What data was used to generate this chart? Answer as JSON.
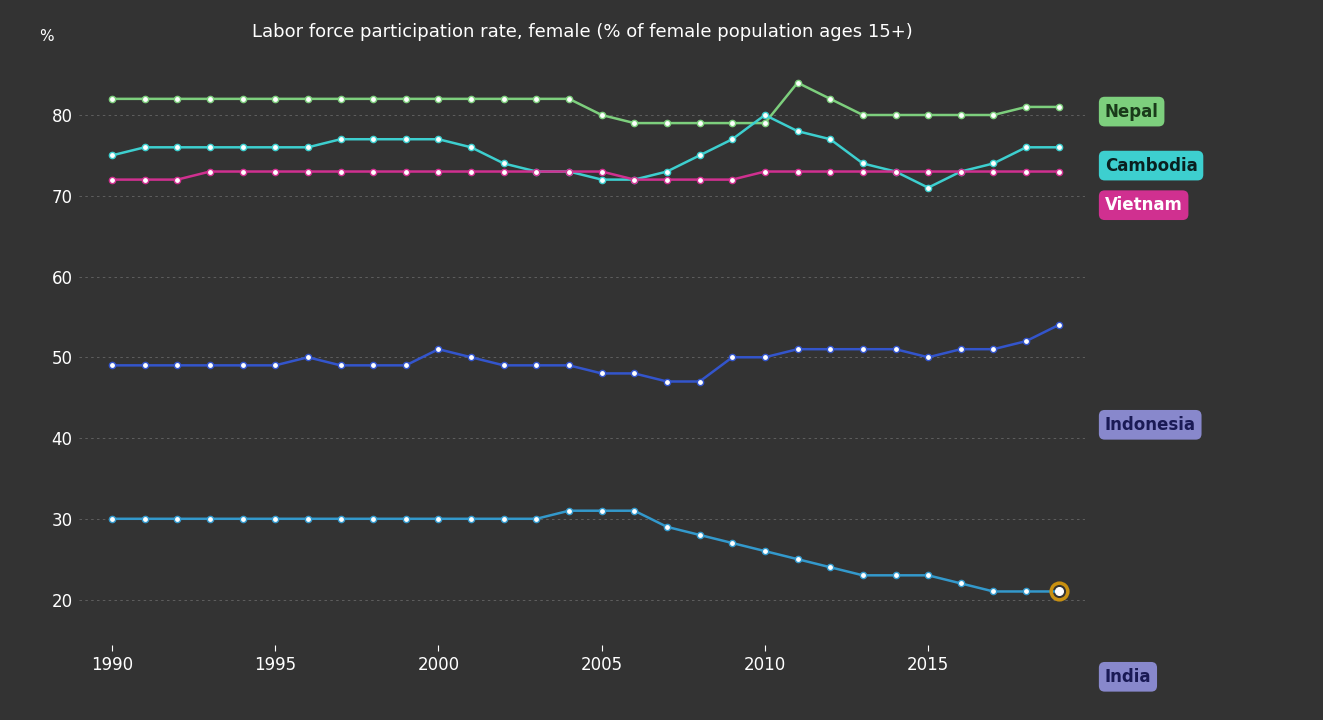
{
  "title": "Labor force participation rate, female (% of female population ages 15+)",
  "ylabel": "%",
  "background_color": "#333333",
  "text_color": "#ffffff",
  "grid_color": "#666666",
  "ylim": [
    14,
    88
  ],
  "yticks": [
    20,
    30,
    40,
    50,
    60,
    70,
    80
  ],
  "years": [
    1990,
    1991,
    1992,
    1993,
    1994,
    1995,
    1996,
    1997,
    1998,
    1999,
    2000,
    2001,
    2002,
    2003,
    2004,
    2005,
    2006,
    2007,
    2008,
    2009,
    2010,
    2011,
    2012,
    2013,
    2014,
    2015,
    2016,
    2017,
    2018,
    2019
  ],
  "series": {
    "Nepal": {
      "color": "#7dcf7d",
      "data": [
        82,
        82,
        82,
        82,
        82,
        82,
        82,
        82,
        82,
        82,
        82,
        82,
        82,
        82,
        82,
        80,
        79,
        79,
        79,
        79,
        79,
        84,
        82,
        80,
        80,
        80,
        80,
        80,
        81,
        81
      ]
    },
    "Cambodia": {
      "color": "#3dcfcf",
      "data": [
        75,
        76,
        76,
        76,
        76,
        76,
        76,
        77,
        77,
        77,
        77,
        76,
        74,
        73,
        73,
        72,
        72,
        73,
        75,
        77,
        80,
        78,
        77,
        74,
        73,
        71,
        73,
        74,
        76,
        76
      ]
    },
    "Vietnam": {
      "color": "#d03090",
      "data": [
        72,
        72,
        72,
        73,
        73,
        73,
        73,
        73,
        73,
        73,
        73,
        73,
        73,
        73,
        73,
        73,
        72,
        72,
        72,
        72,
        73,
        73,
        73,
        73,
        73,
        73,
        73,
        73,
        73,
        73
      ]
    },
    "Indonesia": {
      "color": "#3355cc",
      "data": [
        49,
        49,
        49,
        49,
        49,
        49,
        50,
        49,
        49,
        49,
        51,
        50,
        49,
        49,
        49,
        48,
        48,
        47,
        47,
        50,
        50,
        51,
        51,
        51,
        51,
        50,
        51,
        51,
        52,
        54
      ]
    },
    "India": {
      "color": "#3399cc",
      "data": [
        30,
        30,
        30,
        30,
        30,
        30,
        30,
        30,
        30,
        30,
        30,
        30,
        30,
        30,
        31,
        31,
        31,
        29,
        28,
        27,
        26,
        25,
        24,
        23,
        23,
        23,
        22,
        21,
        21,
        21
      ]
    }
  },
  "legend": {
    "Nepal": {
      "bg": "#7dcf7d",
      "fg": "#1a3a1a"
    },
    "Cambodia": {
      "bg": "#3dcfcf",
      "fg": "#0a2020"
    },
    "Vietnam": {
      "bg": "#d03090",
      "fg": "#ffffff"
    },
    "Indonesia": {
      "bg": "#8888cc",
      "fg": "#1a1a55"
    },
    "India": {
      "bg": "#8888cc",
      "fg": "#1a1a55"
    }
  },
  "legend_y_fracs": {
    "Nepal": 0.845,
    "Cambodia": 0.77,
    "Vietnam": 0.715,
    "Indonesia": 0.41,
    "India": 0.06
  },
  "india_highlight_year": 2019,
  "india_highlight_color": "#c89010"
}
